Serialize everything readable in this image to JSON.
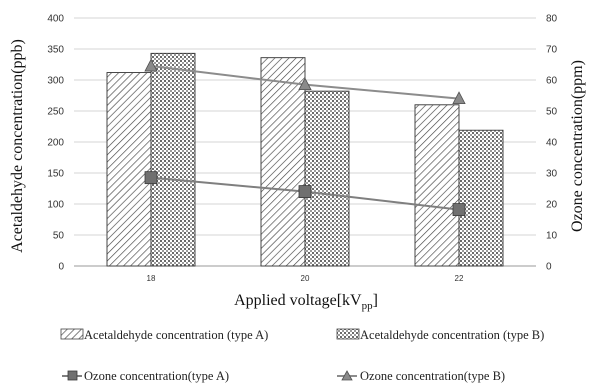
{
  "chart_data": {
    "type": "bar",
    "categories": [
      "18",
      "20",
      "22"
    ],
    "xlabel": "Applied voltage[kV",
    "xlabel_sub": "pp",
    "xlabel_end": "]",
    "ylabel_left": "Acetaldehyde concentration(ppb)",
    "ylabel_right": "Ozone concentration(ppm)",
    "ylim_left": [
      0,
      400
    ],
    "yticks_left": [
      "0",
      "50",
      "100",
      "150",
      "200",
      "250",
      "300",
      "350",
      "400"
    ],
    "ylim_right": [
      0,
      80
    ],
    "yticks_right": [
      "0",
      "10",
      "20",
      "30",
      "40",
      "50",
      "60",
      "70",
      "80"
    ],
    "grid": true,
    "legend_position": "bottom",
    "bar_series": [
      {
        "name": "Acetaldehyde concentration (type A)",
        "pattern": "diagonal-hatch",
        "values": [
          312,
          336,
          260
        ]
      },
      {
        "name": "Acetaldehyde concentration (type B)",
        "pattern": "dotted-grid",
        "values": [
          343,
          282,
          219
        ]
      }
    ],
    "line_series": [
      {
        "name": "Ozone concentration(type A)",
        "marker": "square",
        "color": "#7f7f7f",
        "values": [
          28.5,
          24,
          18.2
        ]
      },
      {
        "name": "Ozone concentration(type B)",
        "marker": "triangle",
        "color": "#8c8c8c",
        "values": [
          64.5,
          58.5,
          54
        ]
      }
    ]
  }
}
